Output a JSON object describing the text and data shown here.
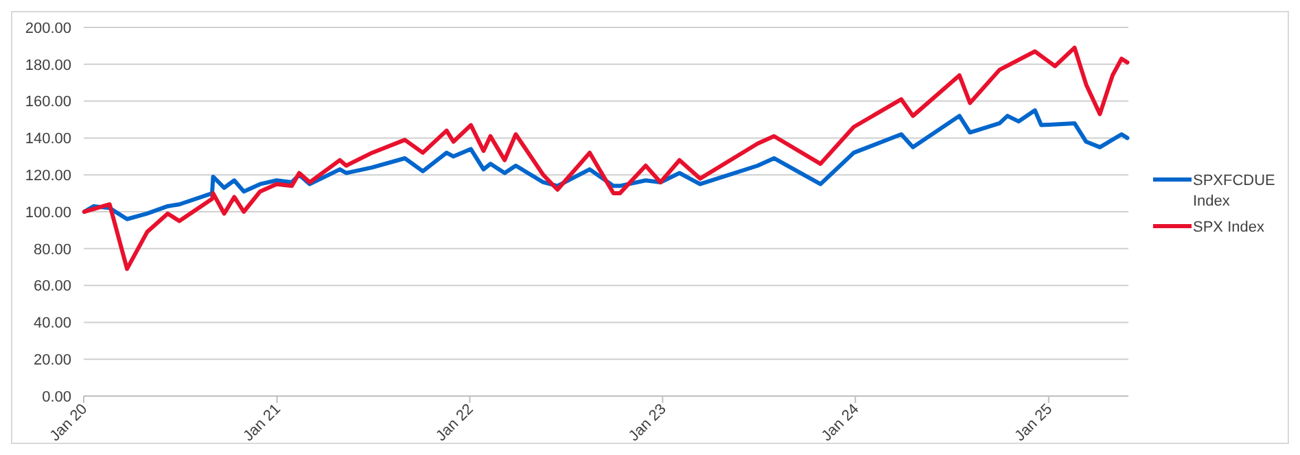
{
  "chart_data": {
    "type": "line",
    "ylim": [
      0,
      200
    ],
    "yticks": [
      {
        "value": 0,
        "label": "0.00"
      },
      {
        "value": 20,
        "label": "20.00"
      },
      {
        "value": 40,
        "label": "40.00"
      },
      {
        "value": 60,
        "label": "60.00"
      },
      {
        "value": 80,
        "label": "80.00"
      },
      {
        "value": 100,
        "label": "100.00"
      },
      {
        "value": 120,
        "label": "120.00"
      },
      {
        "value": 140,
        "label": "140.00"
      },
      {
        "value": 160,
        "label": "160.00"
      },
      {
        "value": 180,
        "label": "180.00"
      },
      {
        "value": 200,
        "label": "200.00"
      }
    ],
    "xlim": [
      "2020-01-01",
      "2025-06-01"
    ],
    "xticks": [
      {
        "value": "2020-01-01",
        "label": "Jan 20"
      },
      {
        "value": "2021-01-01",
        "label": "Jan 21"
      },
      {
        "value": "2022-01-01",
        "label": "Jan 22"
      },
      {
        "value": "2023-01-01",
        "label": "Jan 23"
      },
      {
        "value": "2024-01-01",
        "label": "Jan 24"
      },
      {
        "value": "2025-01-01",
        "label": "Jan 25"
      }
    ],
    "grid": "y",
    "legend": "right",
    "line_style": "solid",
    "marker": "none",
    "series": [
      {
        "name": "SPXFCDUE Index",
        "color": "#0066cc",
        "x": [
          "2020-01-02",
          "2020-01-20",
          "2020-02-19",
          "2020-03-23",
          "2020-04-30",
          "2020-06-08",
          "2020-06-30",
          "2020-08-31",
          "2020-09-02",
          "2020-09-23",
          "2020-10-12",
          "2020-10-30",
          "2020-11-30",
          "2020-12-31",
          "2021-01-29",
          "2021-02-12",
          "2021-03-04",
          "2021-04-30",
          "2021-05-12",
          "2021-06-30",
          "2021-08-31",
          "2021-10-04",
          "2021-11-18",
          "2021-12-01",
          "2022-01-03",
          "2022-01-27",
          "2022-02-09",
          "2022-03-08",
          "2022-03-29",
          "2022-05-20",
          "2022-06-16",
          "2022-08-16",
          "2022-09-30",
          "2022-10-12",
          "2022-11-30",
          "2022-12-28",
          "2023-02-02",
          "2023-03-13",
          "2023-06-30",
          "2023-07-31",
          "2023-10-27",
          "2023-12-29",
          "2024-03-28",
          "2024-04-19",
          "2024-07-16",
          "2024-08-05",
          "2024-09-30",
          "2024-10-15",
          "2024-11-05",
          "2024-12-06",
          "2024-12-18",
          "2025-02-19",
          "2025-03-13",
          "2025-04-08",
          "2025-05-19",
          "2025-05-30"
        ],
        "values": [
          100,
          103,
          102,
          96,
          99,
          103,
          104,
          110,
          119,
          113,
          117,
          111,
          115,
          117,
          116,
          120,
          115,
          123,
          121,
          124,
          129,
          122,
          132,
          130,
          134,
          123,
          126,
          121,
          125,
          116,
          114,
          123,
          114,
          114,
          117,
          116,
          121,
          115,
          125,
          129,
          115,
          132,
          142,
          135,
          152,
          143,
          148,
          152,
          149,
          155,
          147,
          148,
          138,
          135,
          142,
          140
        ]
      },
      {
        "name": "SPX Index",
        "color": "#e8112d",
        "x": [
          "2020-01-02",
          "2020-02-19",
          "2020-03-23",
          "2020-04-30",
          "2020-06-08",
          "2020-06-30",
          "2020-08-31",
          "2020-09-02",
          "2020-09-23",
          "2020-10-12",
          "2020-10-30",
          "2020-11-30",
          "2020-12-31",
          "2021-01-29",
          "2021-02-12",
          "2021-03-04",
          "2021-04-30",
          "2021-05-12",
          "2021-06-30",
          "2021-08-31",
          "2021-10-04",
          "2021-11-18",
          "2021-12-01",
          "2022-01-03",
          "2022-01-27",
          "2022-02-09",
          "2022-03-08",
          "2022-03-29",
          "2022-05-20",
          "2022-06-16",
          "2022-08-16",
          "2022-09-30",
          "2022-10-12",
          "2022-11-30",
          "2022-12-28",
          "2023-02-02",
          "2023-03-13",
          "2023-06-30",
          "2023-07-31",
          "2023-10-27",
          "2023-12-29",
          "2024-03-28",
          "2024-04-19",
          "2024-07-16",
          "2024-08-05",
          "2024-09-30",
          "2024-12-06",
          "2025-01-13",
          "2025-02-19",
          "2025-03-13",
          "2025-04-08",
          "2025-05-02",
          "2025-05-19",
          "2025-05-30"
        ],
        "values": [
          100,
          104,
          69,
          89,
          99,
          95,
          107,
          110,
          99,
          108,
          100,
          111,
          115,
          114,
          121,
          116,
          128,
          125,
          132,
          139,
          132,
          144,
          138,
          147,
          133,
          141,
          128,
          142,
          120,
          112,
          132,
          110,
          110,
          125,
          116,
          128,
          118,
          137,
          141,
          126,
          146,
          161,
          152,
          174,
          159,
          177,
          187,
          179,
          189,
          169,
          153,
          174,
          183,
          181
        ]
      }
    ]
  }
}
